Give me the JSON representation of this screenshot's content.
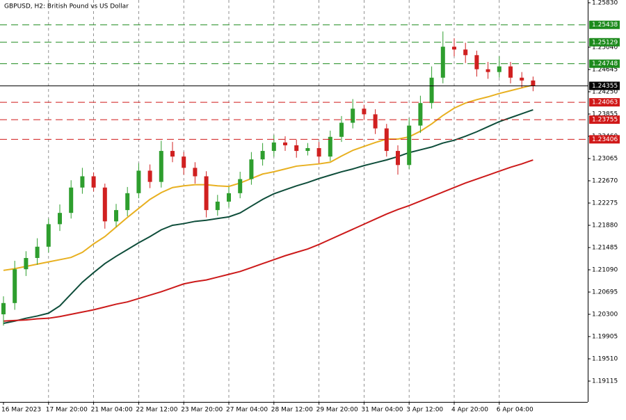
{
  "chart_data": {
    "type": "candlestick",
    "title": "GBPUSD, H2:  British Pound vs US Dollar",
    "categories": [
      "16 Mar 2023",
      null,
      null,
      null,
      "17 Mar 20:00",
      null,
      null,
      null,
      "21 Mar 04:00",
      null,
      null,
      null,
      "22 Mar 12:00",
      null,
      null,
      null,
      "23 Mar 20:00",
      null,
      null,
      null,
      "27 Mar 04:00",
      null,
      null,
      null,
      "28 Mar 12:00",
      null,
      null,
      null,
      "29 Mar 20:00",
      null,
      null,
      null,
      "31 Mar 04:00",
      null,
      null,
      null,
      "3 Apr 12:00",
      null,
      null,
      null,
      "4 Apr 20:00",
      null,
      null,
      null,
      "6 Apr 04:00",
      null,
      null,
      null
    ],
    "open": [
      1.203,
      1.205,
      1.211,
      1.213,
      1.215,
      1.219,
      1.221,
      1.2255,
      1.2275,
      1.2255,
      1.2195,
      1.2215,
      1.2245,
      1.2285,
      1.2265,
      1.232,
      1.231,
      1.229,
      1.2275,
      1.2215,
      1.223,
      1.2245,
      1.227,
      1.2305,
      1.232,
      1.2335,
      1.233,
      1.232,
      1.2325,
      1.231,
      1.2345,
      1.237,
      1.2395,
      1.2385,
      1.236,
      1.232,
      1.2295,
      1.2365,
      1.2405,
      1.245,
      1.2505,
      1.25,
      1.249,
      1.2465,
      1.246,
      1.247,
      1.245,
      1.2445
    ],
    "high": [
      1.2062,
      1.2125,
      1.2142,
      1.2165,
      1.22,
      1.2225,
      1.2268,
      1.229,
      1.2282,
      1.2262,
      1.2226,
      1.2256,
      1.2298,
      1.2296,
      1.2338,
      1.2336,
      1.2318,
      1.23,
      1.2284,
      1.2242,
      1.2256,
      1.2283,
      1.2318,
      1.2334,
      1.2348,
      1.2346,
      1.234,
      1.2334,
      1.2336,
      1.2356,
      1.2382,
      1.2412,
      1.2402,
      1.2394,
      1.2368,
      1.233,
      1.2378,
      1.2418,
      1.247,
      1.2532,
      1.252,
      1.2512,
      1.2498,
      1.2478,
      1.2488,
      1.2478,
      1.246,
      1.2452
    ],
    "low": [
      1.201,
      1.2038,
      1.2098,
      1.2118,
      1.214,
      1.2178,
      1.22,
      1.2244,
      1.2248,
      1.2182,
      1.2185,
      1.2204,
      1.2236,
      1.2254,
      1.2255,
      1.23,
      1.2278,
      1.2262,
      1.2202,
      1.2205,
      1.222,
      1.2236,
      1.226,
      1.2294,
      1.231,
      1.232,
      1.2308,
      1.2312,
      1.2298,
      1.2302,
      1.2336,
      1.236,
      1.2375,
      1.235,
      1.231,
      1.2278,
      1.2288,
      1.2352,
      1.2395,
      1.244,
      1.2488,
      1.2476,
      1.2452,
      1.2448,
      1.245,
      1.244,
      1.2432,
      1.2426
    ],
    "close": [
      1.205,
      1.211,
      1.213,
      1.215,
      1.219,
      1.221,
      1.2255,
      1.2275,
      1.2255,
      1.2195,
      1.2215,
      1.2245,
      1.2285,
      1.2265,
      1.232,
      1.231,
      1.229,
      1.2275,
      1.2215,
      1.223,
      1.2245,
      1.227,
      1.2305,
      1.232,
      1.2335,
      1.233,
      1.232,
      1.2325,
      1.231,
      1.2345,
      1.237,
      1.2395,
      1.2385,
      1.236,
      1.232,
      1.2295,
      1.2365,
      1.2405,
      1.245,
      1.2505,
      1.25,
      1.249,
      1.2465,
      1.246,
      1.247,
      1.245,
      1.2445,
      1.2436
    ],
    "up_color": "#2e9e2e",
    "down_color": "#d02020",
    "moving_averages": [
      {
        "color": "#e8b020",
        "values": [
          1.2108,
          1.2111,
          1.2115,
          1.2119,
          1.2123,
          1.2127,
          1.2131,
          1.214,
          1.2155,
          1.2168,
          1.2185,
          1.2202,
          1.2218,
          1.2234,
          1.2246,
          1.2255,
          1.2258,
          1.226,
          1.226,
          1.2258,
          1.2257,
          1.2263,
          1.2271,
          1.2279,
          1.2283,
          1.2288,
          1.2293,
          1.2295,
          1.2297,
          1.23,
          1.2311,
          1.2321,
          1.2328,
          1.2335,
          1.2341,
          1.2341,
          1.2345,
          1.2355,
          1.2368,
          1.2383,
          1.2396,
          1.2405,
          1.2411,
          1.2416,
          1.2422,
          1.2427,
          1.2432,
          1.2437
        ]
      },
      {
        "color": "#0e4d3a",
        "values": [
          1.2014,
          1.2018,
          1.2023,
          1.2027,
          1.2032,
          1.2045,
          1.2066,
          1.2087,
          1.2104,
          1.212,
          1.2133,
          1.2145,
          1.2157,
          1.2168,
          1.218,
          1.2188,
          1.2191,
          1.2195,
          1.2197,
          1.22,
          1.2203,
          1.221,
          1.2222,
          1.2234,
          1.2244,
          1.2251,
          1.2258,
          1.2264,
          1.2271,
          1.2277,
          1.2283,
          1.2288,
          1.2294,
          1.2299,
          1.2304,
          1.231,
          1.2317,
          1.2322,
          1.2327,
          1.2334,
          1.2339,
          1.2346,
          1.2354,
          1.2363,
          1.2372,
          1.2379,
          1.2386,
          1.2393
        ]
      },
      {
        "color": "#cc1a1a",
        "values": [
          1.2018,
          1.2019,
          1.202,
          1.2022,
          1.2023,
          1.2026,
          1.203,
          1.2034,
          1.2038,
          1.2043,
          1.2048,
          1.2052,
          1.2058,
          1.2064,
          1.207,
          1.2077,
          1.2084,
          1.2088,
          1.2091,
          1.2096,
          1.2101,
          1.2106,
          1.2113,
          1.212,
          1.2127,
          1.2134,
          1.214,
          1.2146,
          1.2154,
          1.2163,
          1.2172,
          1.2181,
          1.219,
          1.2199,
          1.2208,
          1.2216,
          1.2223,
          1.2231,
          1.2239,
          1.2247,
          1.2255,
          1.2263,
          1.227,
          1.2277,
          1.2284,
          1.2291,
          1.2297,
          1.2304
        ]
      }
    ],
    "levels": [
      {
        "value": 1.25438,
        "color": "#1c8a1c",
        "style": "dashed"
      },
      {
        "value": 1.25129,
        "color": "#1c8a1c",
        "style": "dashed"
      },
      {
        "value": 1.24748,
        "color": "#1c8a1c",
        "style": "dashed"
      },
      {
        "value": 1.24355,
        "color": "#000000",
        "style": "solid"
      },
      {
        "value": 1.24063,
        "color": "#d01818",
        "style": "dashed"
      },
      {
        "value": 1.23755,
        "color": "#d01818",
        "style": "dashed"
      },
      {
        "value": 1.23406,
        "color": "#d01818",
        "style": "dashed"
      }
    ],
    "ylim": [
      1.18745,
      1.25879
    ],
    "yticks": [
      {
        "value": 1.2583,
        "label": "1.25830"
      },
      {
        "value": 1.2504,
        "label": "1.25040"
      },
      1.24645,
      {
        "value": 1.2425,
        "label": "1.24250"
      },
      1.23855,
      {
        "value": 1.2346,
        "label": "1.23460"
      },
      1.23065,
      {
        "value": 1.2267,
        "label": "1.22670"
      },
      1.22275,
      {
        "value": 1.2188,
        "label": "1.21880"
      },
      1.21485,
      {
        "value": 1.2109,
        "label": "1.21090"
      },
      1.20695,
      {
        "value": 1.203,
        "label": "1.20300"
      },
      1.19905,
      {
        "value": 1.1951,
        "label": "1.19510"
      },
      1.19115
    ],
    "grid": true
  }
}
